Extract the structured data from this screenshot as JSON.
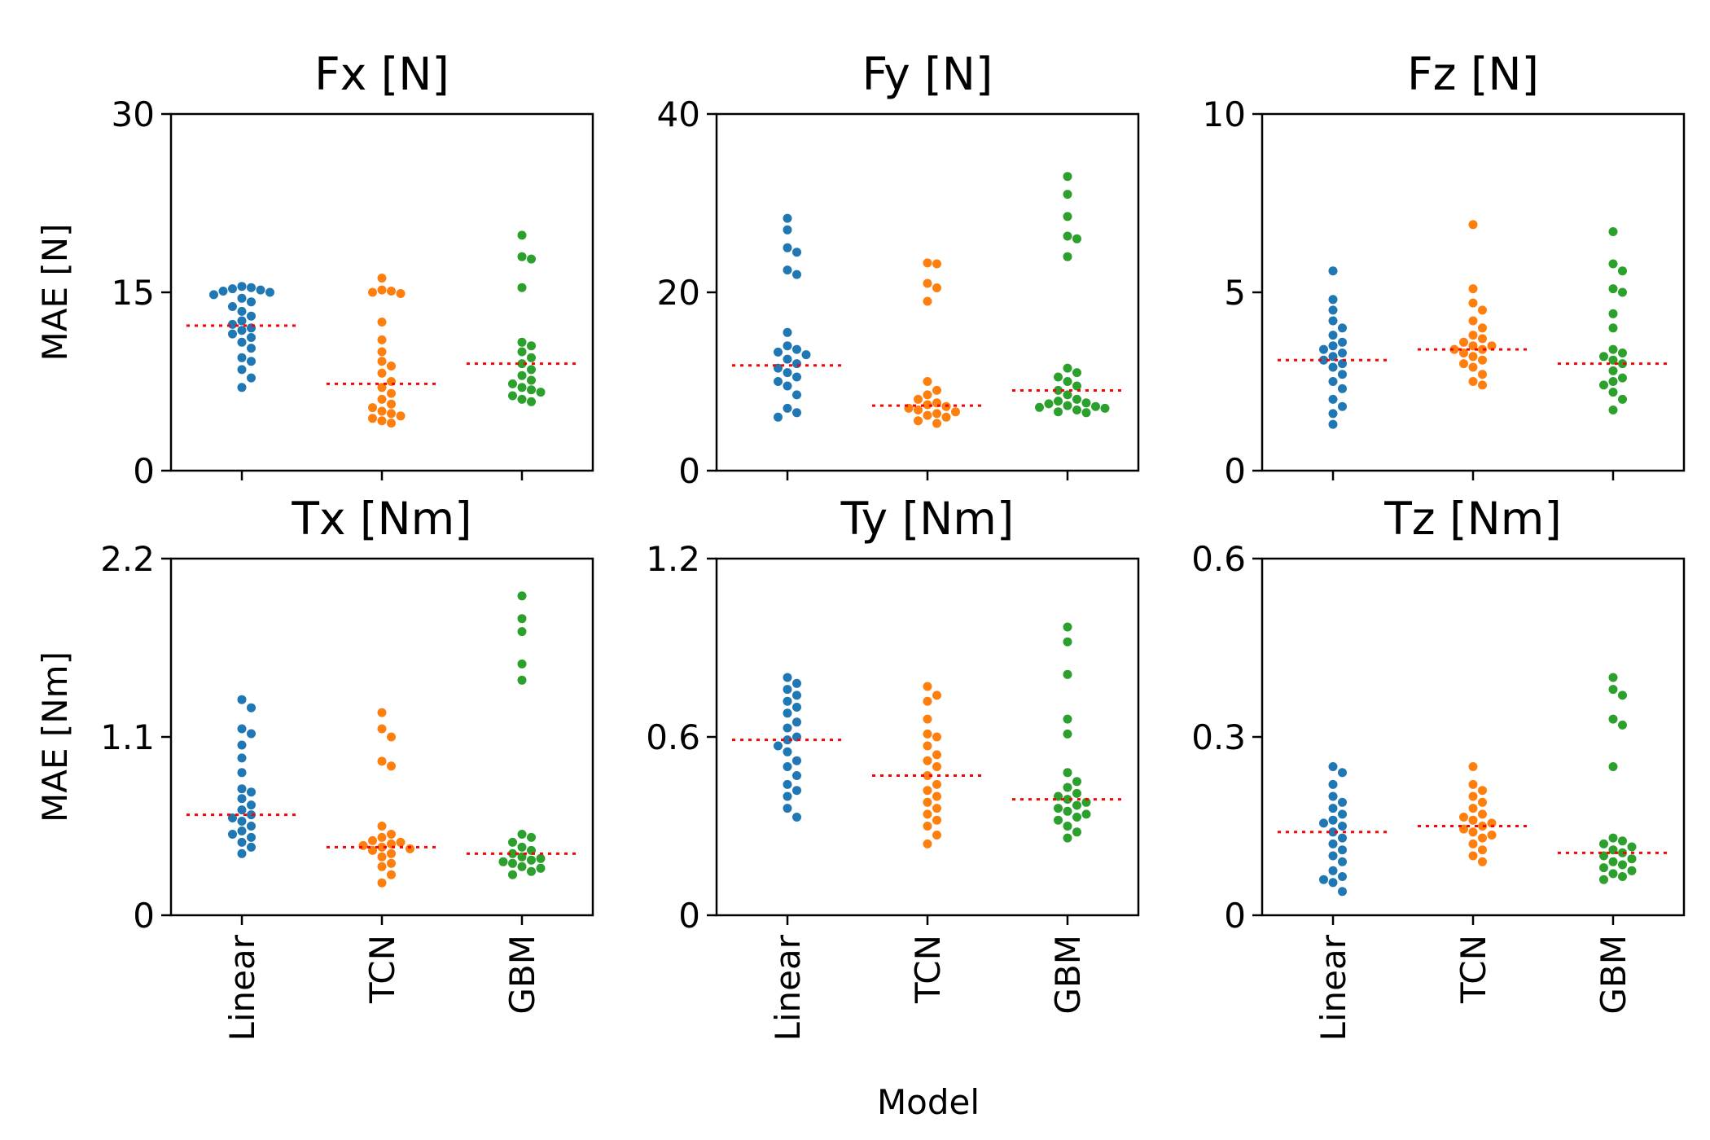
{
  "chart_data": {
    "type": "scatter",
    "xlabel": "Model",
    "categories": [
      "Linear",
      "TCN",
      "GBM"
    ],
    "series_colors": {
      "Linear": "#1f77b4",
      "TCN": "#ff7f0e",
      "GBM": "#2ca02c"
    },
    "mean_line_color": "#ff0000",
    "panels": [
      {
        "title": "Fx [N]",
        "ylabel": "MAE [N]",
        "ylim": [
          0,
          30
        ],
        "yticks": [
          "0",
          "15",
          "30"
        ],
        "yticks_values": [
          0,
          15,
          30
        ],
        "show_xlabels": false,
        "series": [
          {
            "name": "Linear",
            "mean": 12.2,
            "values": [
              7.0,
              7.8,
              8.5,
              9.2,
              9.5,
              10.3,
              10.8,
              11.2,
              11.5,
              11.8,
              12.0,
              12.3,
              12.6,
              13.0,
              13.4,
              13.8,
              14.2,
              14.5,
              14.8,
              15.0,
              15.1,
              15.2,
              15.3,
              15.4,
              15.5
            ]
          },
          {
            "name": "TCN",
            "mean": 7.3,
            "values": [
              4.0,
              4.2,
              4.4,
              4.6,
              4.8,
              5.0,
              5.3,
              5.6,
              6.0,
              6.5,
              7.0,
              7.5,
              8.2,
              8.8,
              9.2,
              10.0,
              11.0,
              12.5,
              14.9,
              15.0,
              15.1,
              15.2,
              16.2
            ]
          },
          {
            "name": "GBM",
            "mean": 9.0,
            "values": [
              5.8,
              6.0,
              6.3,
              6.6,
              6.8,
              7.0,
              7.3,
              7.6,
              8.0,
              8.5,
              9.0,
              9.5,
              10.0,
              10.5,
              10.8,
              15.4,
              17.8,
              18.0,
              19.8
            ]
          }
        ]
      },
      {
        "title": "Fy [N]",
        "ylabel": "",
        "ylim": [
          0,
          40
        ],
        "yticks": [
          "0",
          "20",
          "40"
        ],
        "yticks_values": [
          0,
          20,
          40
        ],
        "show_xlabels": false,
        "series": [
          {
            "name": "Linear",
            "mean": 11.8,
            "values": [
              6.0,
              6.5,
              7.0,
              8.5,
              9.5,
              10.0,
              10.5,
              11.0,
              11.5,
              12.0,
              12.5,
              13.0,
              13.3,
              13.6,
              14.0,
              15.5,
              22.0,
              22.5,
              24.5,
              25.0,
              27.0,
              28.3
            ]
          },
          {
            "name": "TCN",
            "mean": 7.3,
            "values": [
              5.3,
              5.6,
              6.0,
              6.2,
              6.4,
              6.6,
              6.8,
              7.0,
              7.2,
              7.4,
              7.6,
              8.0,
              8.5,
              9.0,
              10.0,
              19.0,
              20.5,
              21.0,
              23.2,
              23.3
            ]
          },
          {
            "name": "GBM",
            "mean": 9.0,
            "values": [
              6.5,
              6.6,
              6.8,
              7.0,
              7.1,
              7.2,
              7.3,
              7.5,
              7.6,
              7.8,
              8.0,
              8.5,
              9.0,
              9.5,
              10.0,
              10.5,
              11.0,
              11.5,
              24.0,
              26.0,
              26.3,
              28.5,
              31.0,
              33.0
            ]
          }
        ]
      },
      {
        "title": "Fz [N]",
        "ylabel": "",
        "ylim": [
          0,
          10
        ],
        "yticks": [
          "0",
          "5",
          "10"
        ],
        "yticks_values": [
          0,
          5,
          10
        ],
        "show_xlabels": false,
        "series": [
          {
            "name": "Linear",
            "mean": 3.1,
            "values": [
              1.3,
              1.6,
              1.8,
              2.0,
              2.3,
              2.5,
              2.7,
              2.9,
              3.0,
              3.1,
              3.2,
              3.3,
              3.4,
              3.5,
              3.6,
              3.8,
              4.0,
              4.2,
              4.5,
              4.8,
              5.6
            ]
          },
          {
            "name": "TCN",
            "mean": 3.4,
            "values": [
              2.4,
              2.5,
              2.7,
              2.9,
              3.0,
              3.1,
              3.2,
              3.3,
              3.4,
              3.4,
              3.5,
              3.5,
              3.6,
              3.7,
              3.8,
              4.0,
              4.2,
              4.5,
              4.7,
              5.1,
              6.9
            ]
          },
          {
            "name": "GBM",
            "mean": 3.0,
            "values": [
              1.7,
              2.0,
              2.2,
              2.4,
              2.5,
              2.6,
              2.8,
              3.0,
              3.1,
              3.2,
              3.3,
              3.4,
              4.0,
              4.4,
              5.0,
              5.1,
              5.6,
              5.8,
              6.7
            ]
          }
        ]
      },
      {
        "title": "Tx [Nm]",
        "ylabel": "MAE [Nm]",
        "ylim": [
          0,
          2.2
        ],
        "yticks": [
          "0",
          "1.1",
          "2.2"
        ],
        "yticks_values": [
          0,
          1.1,
          2.2
        ],
        "show_xlabels": true,
        "series": [
          {
            "name": "Linear",
            "mean": 0.62,
            "values": [
              0.38,
              0.42,
              0.45,
              0.48,
              0.5,
              0.52,
              0.55,
              0.58,
              0.6,
              0.62,
              0.65,
              0.68,
              0.72,
              0.76,
              0.78,
              0.88,
              0.97,
              1.05,
              1.12,
              1.15,
              1.28,
              1.33
            ]
          },
          {
            "name": "TCN",
            "mean": 0.42,
            "values": [
              0.2,
              0.25,
              0.3,
              0.32,
              0.36,
              0.38,
              0.4,
              0.41,
              0.42,
              0.43,
              0.44,
              0.45,
              0.46,
              0.48,
              0.5,
              0.55,
              0.92,
              0.95,
              1.1,
              1.15,
              1.25
            ]
          },
          {
            "name": "GBM",
            "mean": 0.38,
            "values": [
              0.25,
              0.27,
              0.29,
              0.3,
              0.32,
              0.33,
              0.34,
              0.35,
              0.36,
              0.38,
              0.4,
              0.42,
              0.45,
              0.48,
              0.5,
              1.45,
              1.55,
              1.75,
              1.83,
              1.97
            ]
          }
        ]
      },
      {
        "title": "Ty [Nm]",
        "ylabel": "",
        "ylim": [
          0,
          1.2
        ],
        "yticks": [
          "0",
          "0.6",
          "1.2"
        ],
        "yticks_values": [
          0,
          0.6,
          1.2
        ],
        "show_xlabels": true,
        "series": [
          {
            "name": "Linear",
            "mean": 0.59,
            "values": [
              0.33,
              0.36,
              0.4,
              0.42,
              0.44,
              0.47,
              0.5,
              0.52,
              0.55,
              0.57,
              0.59,
              0.6,
              0.63,
              0.65,
              0.68,
              0.7,
              0.72,
              0.74,
              0.76,
              0.78,
              0.8
            ]
          },
          {
            "name": "TCN",
            "mean": 0.47,
            "values": [
              0.24,
              0.27,
              0.3,
              0.32,
              0.34,
              0.36,
              0.38,
              0.4,
              0.42,
              0.44,
              0.47,
              0.5,
              0.52,
              0.54,
              0.57,
              0.6,
              0.61,
              0.66,
              0.72,
              0.74,
              0.77
            ]
          },
          {
            "name": "GBM",
            "mean": 0.39,
            "values": [
              0.26,
              0.28,
              0.3,
              0.32,
              0.33,
              0.34,
              0.35,
              0.36,
              0.37,
              0.38,
              0.39,
              0.4,
              0.41,
              0.43,
              0.45,
              0.48,
              0.61,
              0.66,
              0.81,
              0.92,
              0.97
            ]
          }
        ]
      },
      {
        "title": "Tz [Nm]",
        "ylabel": "",
        "ylim": [
          0,
          0.6
        ],
        "yticks": [
          "0",
          "0.3",
          "0.6"
        ],
        "yticks_values": [
          0,
          0.3,
          0.6
        ],
        "show_xlabels": true,
        "series": [
          {
            "name": "Linear",
            "mean": 0.14,
            "values": [
              0.04,
              0.055,
              0.06,
              0.065,
              0.075,
              0.09,
              0.1,
              0.11,
              0.12,
              0.13,
              0.14,
              0.15,
              0.155,
              0.16,
              0.17,
              0.18,
              0.19,
              0.2,
              0.22,
              0.24,
              0.25
            ]
          },
          {
            "name": "TCN",
            "mean": 0.15,
            "values": [
              0.09,
              0.1,
              0.11,
              0.12,
              0.13,
              0.135,
              0.14,
              0.145,
              0.15,
              0.155,
              0.16,
              0.165,
              0.17,
              0.18,
              0.19,
              0.2,
              0.21,
              0.22,
              0.25
            ]
          },
          {
            "name": "GBM",
            "mean": 0.105,
            "values": [
              0.06,
              0.065,
              0.07,
              0.075,
              0.08,
              0.085,
              0.09,
              0.095,
              0.1,
              0.105,
              0.11,
              0.115,
              0.12,
              0.125,
              0.13,
              0.25,
              0.32,
              0.33,
              0.37,
              0.38,
              0.4
            ]
          }
        ]
      }
    ]
  }
}
